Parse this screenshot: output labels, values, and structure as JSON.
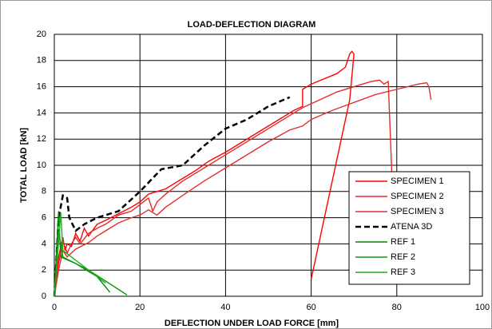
{
  "chart_data": {
    "type": "line",
    "title": "LOAD-DEFLECTION DIAGRAM",
    "x_label": "DEFLECTION UNDER LOAD FORCE [mm]",
    "y_label": "TOTAL LOAD [kN]",
    "xlim": [
      0,
      100
    ],
    "xticks": [
      0,
      20,
      40,
      60,
      80,
      100
    ],
    "ylim": [
      0,
      20
    ],
    "yticks": [
      0,
      2,
      4,
      6,
      8,
      10,
      12,
      14,
      16,
      18,
      20
    ],
    "grid": true,
    "legend": "lower right",
    "series": [
      {
        "name": "SPECIMEN 1",
        "color": "#ff0000",
        "style": "solid",
        "x": [
          0,
          1,
          2,
          2.5,
          3,
          4,
          5,
          6,
          7,
          8,
          10,
          12,
          15,
          18,
          20,
          22,
          24,
          26,
          28,
          30,
          33,
          36,
          40,
          44,
          48,
          52,
          56,
          58,
          58,
          60,
          63,
          66,
          68,
          69,
          69.5,
          70,
          69,
          60
        ],
        "values": [
          0,
          3,
          4.5,
          3.5,
          4,
          3.8,
          4.8,
          4.2,
          5.2,
          4.6,
          5.5,
          5.8,
          6.3,
          6.8,
          7.2,
          7.8,
          8,
          8.2,
          8.6,
          9,
          9.6,
          10.3,
          11,
          11.8,
          12.6,
          13.4,
          14.2,
          14.5,
          15.8,
          16.2,
          16.6,
          17,
          17.5,
          18.5,
          18.7,
          18.5,
          15,
          1.3
        ]
      },
      {
        "name": "SPECIMEN 2",
        "color": "#e82828",
        "style": "solid",
        "x": [
          0,
          1,
          2,
          3,
          4,
          5,
          6,
          8,
          10,
          12,
          15,
          18,
          20,
          22,
          23,
          24,
          26,
          28,
          30,
          34,
          38,
          42,
          46,
          50,
          54,
          58,
          62,
          66,
          70,
          72,
          74,
          76,
          77,
          78,
          79
        ],
        "values": [
          0,
          2.5,
          4.2,
          3.3,
          4,
          4.5,
          4,
          4.8,
          5.2,
          5.5,
          6.2,
          6.5,
          7,
          7.5,
          6.5,
          7.2,
          7.8,
          8.3,
          8.8,
          9.6,
          10.4,
          11.2,
          12,
          12.8,
          13.6,
          14.4,
          15,
          15.6,
          16,
          16.2,
          16.4,
          16.5,
          16.2,
          16.4,
          8
        ]
      },
      {
        "name": "SPECIMEN 3",
        "color": "#e03030",
        "style": "solid",
        "x": [
          0,
          1,
          2,
          3,
          5,
          8,
          10,
          12,
          15,
          18,
          20,
          22,
          24,
          26,
          30,
          35,
          40,
          45,
          50,
          55,
          58,
          60,
          65,
          70,
          75,
          80,
          85,
          87,
          87.5,
          88
        ],
        "values": [
          0,
          2,
          3.5,
          3,
          3.6,
          4.1,
          4.6,
          5,
          5.6,
          6,
          6.2,
          6.6,
          6.2,
          6.8,
          7.7,
          8.8,
          9.8,
          10.8,
          11.8,
          12.7,
          13,
          13.5,
          14.2,
          14.8,
          15.4,
          15.8,
          16.2,
          16.3,
          16,
          15
        ]
      },
      {
        "name": "ATENA 3D",
        "color": "#000000",
        "style": "dashed",
        "x": [
          0,
          1,
          2,
          3,
          3.5,
          5,
          7,
          10,
          15,
          20,
          25,
          30,
          35,
          40,
          45,
          50,
          55
        ],
        "values": [
          0,
          6,
          7.7,
          7.5,
          6,
          5,
          5.5,
          6,
          6.5,
          8,
          9.7,
          10,
          11.5,
          12.8,
          13.5,
          14.5,
          15.2
        ]
      },
      {
        "name": "REF 1",
        "color": "#008800",
        "style": "solid",
        "x": [
          0,
          1,
          1.5,
          5,
          10,
          13
        ],
        "values": [
          0,
          6.5,
          3,
          2.5,
          1.5,
          0.3
        ]
      },
      {
        "name": "REF 2",
        "color": "#119911",
        "style": "solid",
        "x": [
          0,
          1,
          2,
          8,
          17
        ],
        "values": [
          0,
          5,
          3,
          2,
          0.1
        ]
      },
      {
        "name": "REF 3",
        "color": "#22aa22",
        "style": "solid",
        "x": [
          0,
          0.5,
          1.5,
          2,
          6,
          12
        ],
        "values": [
          0,
          2,
          6.4,
          3.5,
          2.5,
          1
        ]
      }
    ]
  }
}
